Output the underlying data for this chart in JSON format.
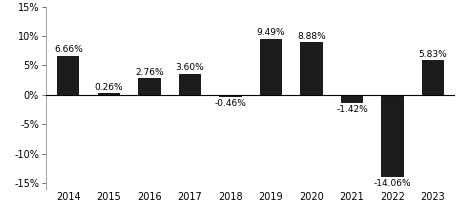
{
  "categories": [
    "2014",
    "2015",
    "2016",
    "2017",
    "2018",
    "2019",
    "2020",
    "2021",
    "2022",
    "2023"
  ],
  "values": [
    6.66,
    0.26,
    2.76,
    3.6,
    -0.46,
    9.49,
    8.88,
    -1.42,
    -14.06,
    5.83
  ],
  "labels": [
    "6.66%",
    "0.26%",
    "2.76%",
    "3.60%",
    "-0.46%",
    "9.49%",
    "8.88%",
    "-1.42%",
    "-14.06%",
    "5.83%"
  ],
  "bar_color": "#1c1c1c",
  "background_color": "#ffffff",
  "ylim": [
    -16,
    15
  ],
  "yticks": [
    -15,
    -10,
    -5,
    0,
    5,
    10,
    15
  ],
  "ytick_labels": [
    "-15%",
    "-10%",
    "-5%",
    "0%",
    "5%",
    "10%",
    "15%"
  ],
  "label_fontsize": 6.5,
  "tick_fontsize": 7.0,
  "bar_width": 0.55
}
